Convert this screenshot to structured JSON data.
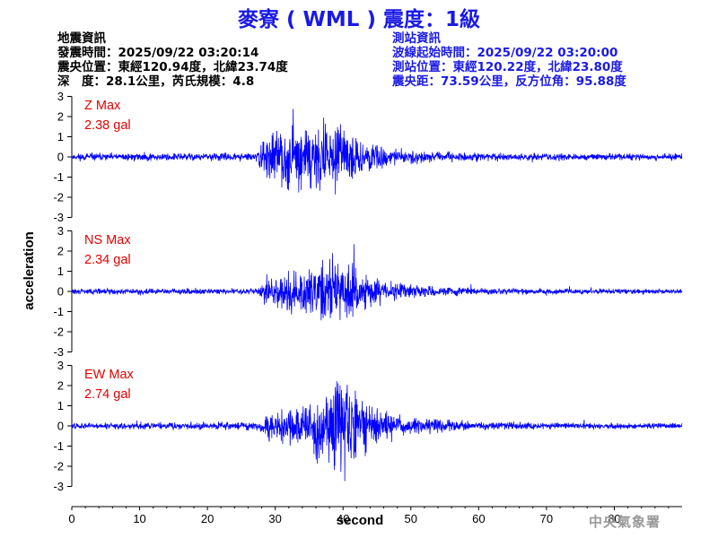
{
  "title": "麥寮 ( WML ) 震度：1級",
  "earthquake": {
    "heading": "地震資訊",
    "origin_time": "發震時間：2025/09/22 03:20:14",
    "epicenter": "震央位置：東經120.94度，北緯23.74度",
    "depth_magnitude": "深　度：28.1公里，芮氏規模：4.8"
  },
  "station": {
    "heading": "測站資訊",
    "wave_start": "波線起始時間：2025/09/22 03:20:00",
    "location": "測站位置：東經120.22度，北緯23.80度",
    "distance": "震央距：73.59公里，反方位角：95.88度"
  },
  "agency": "中央氣象署",
  "colors": {
    "title": "#1a1ae6",
    "trace": "#0000ff",
    "label": "#e60000",
    "axis": "#000000"
  },
  "chart_data": {
    "type": "line",
    "xlabel": "second",
    "ylabel": "acceleration",
    "xlim": [
      0,
      90
    ],
    "xticks": [
      0,
      10,
      20,
      30,
      40,
      50,
      60,
      70,
      80
    ],
    "xtick_labels": [
      "0",
      "10",
      "20",
      "30",
      "40",
      "50",
      "60",
      "70",
      "80"
    ],
    "grid": false,
    "panels": [
      {
        "name_label": "Z Max",
        "max_label": "2.38 gal",
        "max": 2.38,
        "ylim": [
          -3,
          3
        ],
        "yticks": [
          -3,
          -2,
          -1,
          0,
          1,
          2,
          3
        ],
        "ytick_labels": [
          "-3",
          "-2",
          "-1",
          "0",
          "1",
          "2",
          "3"
        ],
        "envelope": {
          "t": [
            0,
            27.5,
            28.2,
            30,
            33,
            36,
            38,
            40,
            42,
            44,
            47,
            50,
            55,
            60,
            70,
            90
          ],
          "a": [
            0.18,
            0.2,
            1.1,
            1.3,
            1.4,
            1.5,
            1.6,
            1.3,
            1.0,
            0.7,
            0.45,
            0.32,
            0.24,
            0.2,
            0.18,
            0.15
          ]
        },
        "seed": 11
      },
      {
        "name_label": "NS Max",
        "max_label": "2.34 gal",
        "max": 2.34,
        "ylim": [
          -3,
          3
        ],
        "yticks": [
          -3,
          -2,
          -1,
          0,
          1,
          2,
          3
        ],
        "ytick_labels": [
          "-3",
          "-2",
          "-1",
          "0",
          "1",
          "2",
          "3"
        ],
        "envelope": {
          "t": [
            0,
            27.5,
            28.3,
            30,
            33,
            36,
            38,
            40,
            42,
            44,
            47,
            50,
            55,
            60,
            70,
            90
          ],
          "a": [
            0.12,
            0.14,
            0.55,
            0.7,
            0.85,
            1.2,
            1.6,
            1.5,
            1.1,
            0.7,
            0.45,
            0.3,
            0.2,
            0.15,
            0.12,
            0.1
          ]
        },
        "seed": 29
      },
      {
        "name_label": "EW Max",
        "max_label": "2.74 gal",
        "max": 2.74,
        "ylim": [
          -3,
          3
        ],
        "yticks": [
          -3,
          -2,
          -1,
          0,
          1,
          2,
          3
        ],
        "ytick_labels": [
          "-3",
          "-2",
          "-1",
          "0",
          "1",
          "2",
          "3"
        ],
        "envelope": {
          "t": [
            0,
            27.5,
            28.3,
            30,
            33,
            36,
            38,
            40,
            42,
            44,
            47,
            50,
            55,
            60,
            70,
            90
          ],
          "a": [
            0.12,
            0.14,
            0.45,
            0.6,
            0.7,
            1.0,
            1.5,
            1.7,
            1.3,
            0.8,
            0.5,
            0.32,
            0.22,
            0.16,
            0.12,
            0.1
          ]
        },
        "seed": 47
      }
    ]
  }
}
